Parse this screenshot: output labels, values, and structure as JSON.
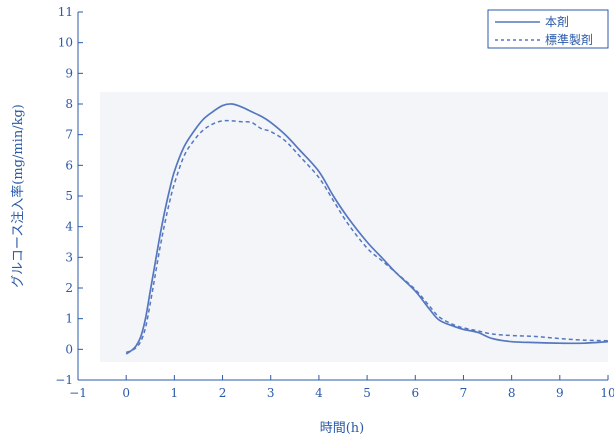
{
  "chart_data": {
    "type": "line",
    "xlabel": "時間(h)",
    "ylabel": "グルコース注入率(mg/min/kg)",
    "xlim": [
      -1,
      10
    ],
    "ylim": [
      -1,
      11
    ],
    "xticks": [
      "-1",
      "0",
      "1",
      "2",
      "3",
      "4",
      "5",
      "6",
      "7",
      "8",
      "9",
      "10"
    ],
    "yticks": [
      "-1",
      "0",
      "1",
      "2",
      "3",
      "4",
      "5",
      "6",
      "7",
      "8",
      "9",
      "10",
      "11"
    ],
    "legend_position": "top-right",
    "grid": false,
    "colors": {
      "axis": "#2b5aa8",
      "series": "#5577c0",
      "background_band": "#f2f4f8"
    },
    "series": [
      {
        "name": "本剤",
        "style": "solid",
        "x": [
          0,
          0.1,
          0.2,
          0.3,
          0.4,
          0.5,
          0.6,
          0.7,
          0.8,
          0.9,
          1.0,
          1.2,
          1.4,
          1.6,
          1.8,
          2.0,
          2.2,
          2.4,
          2.6,
          2.8,
          3.0,
          3.3,
          3.6,
          4.0,
          4.3,
          4.6,
          5.0,
          5.3,
          5.6,
          6.0,
          6.3,
          6.5,
          6.8,
          7.0,
          7.3,
          7.6,
          8.0,
          8.5,
          9.0,
          9.5,
          10.0
        ],
        "y": [
          -0.15,
          -0.05,
          0.1,
          0.4,
          1.0,
          1.9,
          2.8,
          3.7,
          4.5,
          5.2,
          5.8,
          6.6,
          7.1,
          7.5,
          7.75,
          7.95,
          8.0,
          7.9,
          7.75,
          7.6,
          7.4,
          7.0,
          6.5,
          5.8,
          5.0,
          4.3,
          3.5,
          3.0,
          2.5,
          1.9,
          1.3,
          0.95,
          0.75,
          0.65,
          0.55,
          0.35,
          0.25,
          0.22,
          0.2,
          0.2,
          0.25
        ]
      },
      {
        "name": "標準製剤",
        "style": "dashed",
        "x": [
          0,
          0.1,
          0.2,
          0.3,
          0.4,
          0.5,
          0.6,
          0.7,
          0.8,
          0.9,
          1.0,
          1.2,
          1.4,
          1.6,
          1.8,
          2.0,
          2.2,
          2.4,
          2.6,
          2.8,
          3.0,
          3.3,
          3.6,
          4.0,
          4.3,
          4.6,
          5.0,
          5.3,
          5.6,
          6.0,
          6.3,
          6.5,
          6.8,
          7.0,
          7.3,
          7.6,
          8.0,
          8.5,
          9.0,
          9.5,
          10.0
        ],
        "y": [
          -0.1,
          -0.05,
          0.05,
          0.25,
          0.7,
          1.5,
          2.4,
          3.3,
          4.1,
          4.8,
          5.4,
          6.3,
          6.8,
          7.15,
          7.35,
          7.45,
          7.45,
          7.42,
          7.4,
          7.2,
          7.1,
          6.8,
          6.3,
          5.6,
          4.85,
          4.1,
          3.3,
          2.9,
          2.5,
          1.95,
          1.4,
          1.05,
          0.8,
          0.7,
          0.6,
          0.5,
          0.45,
          0.42,
          0.35,
          0.3,
          0.28
        ]
      }
    ]
  }
}
